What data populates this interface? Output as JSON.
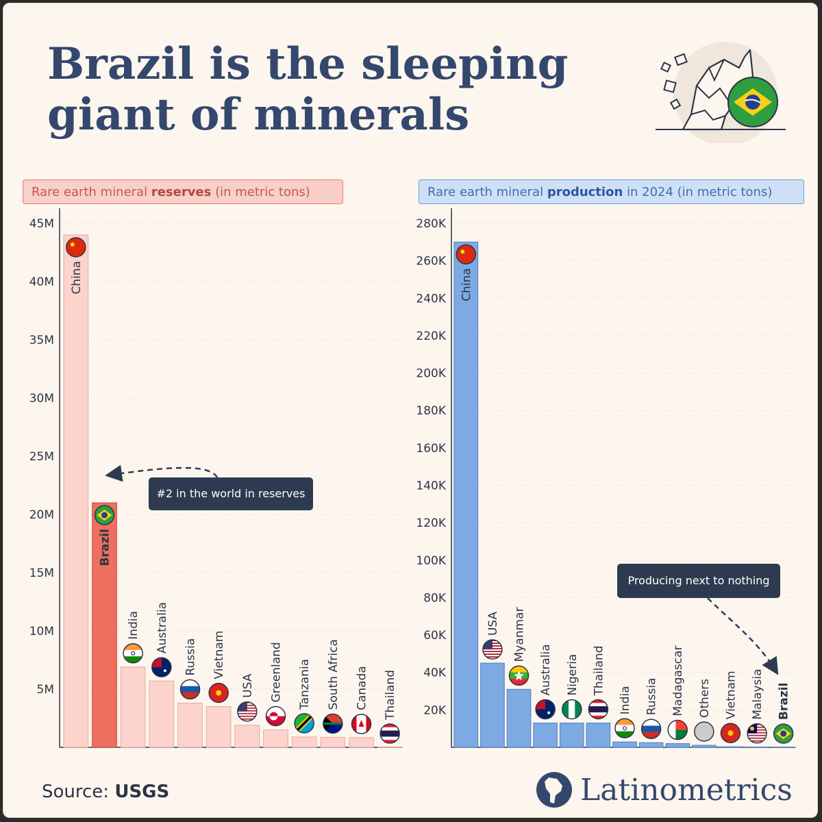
{
  "title": "Brazil is the sleeping giant of minerals",
  "source": {
    "label": "Source:",
    "value": "USGS"
  },
  "brand": {
    "name": "Latinometrics"
  },
  "colors": {
    "background": "#fdf6ee",
    "title": "#34486e",
    "reserves_bar": "#fcd3cd",
    "reserves_highlight": "#ee6e5f",
    "production_bar": "#7daae3",
    "callout_bg": "#2e3a4f"
  },
  "left_chart": {
    "title_pre": "Rare earth mineral ",
    "title_bold": "reserves",
    "title_post": " (in metric tons)",
    "callout": "#2 in the world in reserves"
  },
  "right_chart": {
    "title_pre": "Rare earth mineral ",
    "title_bold": "production",
    "title_post": " in 2024 (in metric tons)",
    "callout": "Producing next to nothing"
  },
  "chart_data": [
    {
      "type": "bar",
      "title": "Rare earth mineral reserves (in metric tons)",
      "categories": [
        "China",
        "Brazil",
        "India",
        "Australia",
        "Russia",
        "Vietnam",
        "USA",
        "Greenland",
        "Tanzania",
        "South Africa",
        "Canada",
        "Thailand"
      ],
      "values": [
        44000000,
        21000000,
        6900000,
        5700000,
        3800000,
        3500000,
        1900000,
        1500000,
        890000,
        860000,
        830000,
        4500
      ],
      "highlight": "Brazil",
      "ylim": [
        0,
        45000000
      ],
      "yticks": [
        "5M",
        "10M",
        "15M",
        "20M",
        "25M",
        "30M",
        "35M",
        "40M",
        "45M"
      ],
      "ytick_values": [
        5000000,
        10000000,
        15000000,
        20000000,
        25000000,
        30000000,
        35000000,
        40000000,
        45000000
      ],
      "annotation": "#2 in the world in reserves"
    },
    {
      "type": "bar",
      "title": "Rare earth mineral production in 2024 (in metric tons)",
      "categories": [
        "China",
        "USA",
        "Myanmar",
        "Australia",
        "Nigeria",
        "Thailand",
        "India",
        "Russia",
        "Madagascar",
        "Others",
        "Vietnam",
        "Malaysia",
        "Brazil"
      ],
      "values": [
        270000,
        45000,
        31000,
        13000,
        13000,
        13000,
        2900,
        2500,
        2000,
        1100,
        300,
        130,
        20
      ],
      "highlight": "Brazil",
      "ylim": [
        0,
        280000
      ],
      "yticks": [
        "20K",
        "40K",
        "60K",
        "80K",
        "100K",
        "120K",
        "140K",
        "160K",
        "180K",
        "200K",
        "220K",
        "240K",
        "260K",
        "280K"
      ],
      "ytick_values": [
        20000,
        40000,
        60000,
        80000,
        100000,
        120000,
        140000,
        160000,
        180000,
        200000,
        220000,
        240000,
        260000,
        280000
      ],
      "annotation": "Producing next to nothing"
    }
  ]
}
